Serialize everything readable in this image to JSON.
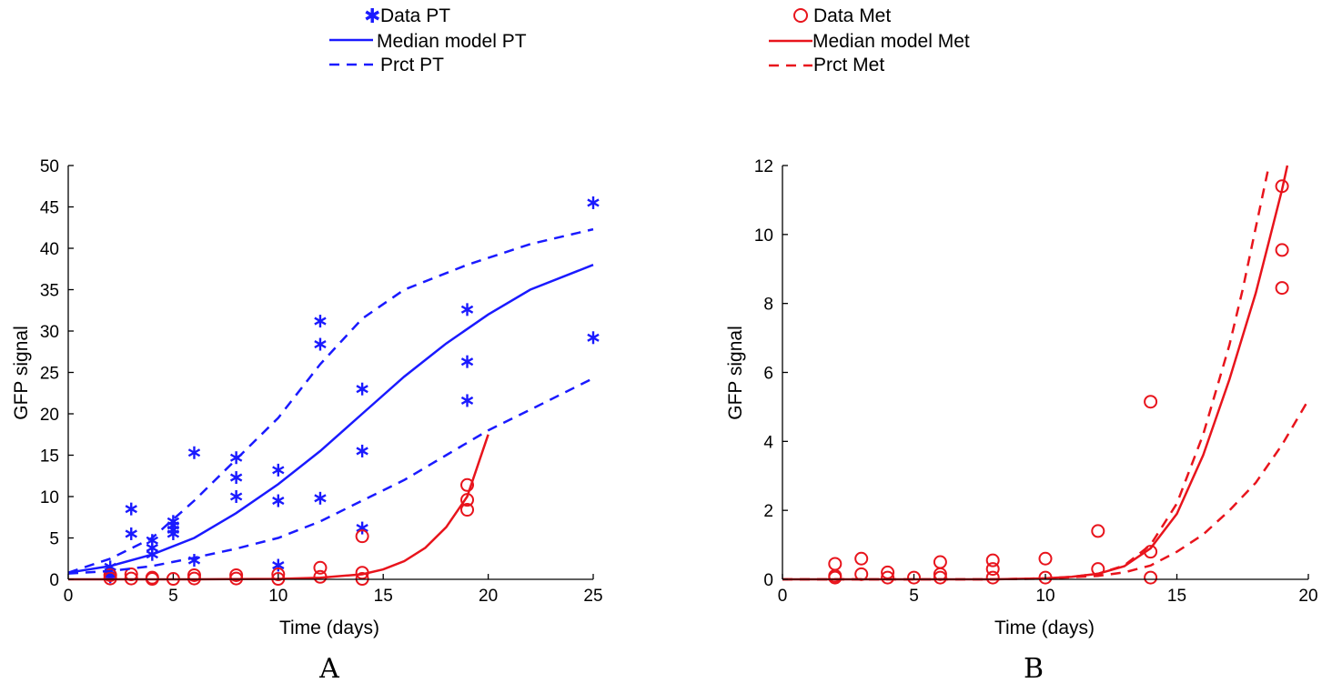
{
  "chart_data": [
    {
      "type": "scatter",
      "panel_label": "A",
      "xlabel": "Time (days)",
      "ylabel": "GFP signal",
      "xlim": [
        0,
        25
      ],
      "ylim": [
        0,
        50
      ],
      "xticks": [
        "0",
        "5",
        "10",
        "15",
        "20",
        "25"
      ],
      "yticks": [
        "0",
        "5",
        "10",
        "15",
        "20",
        "25",
        "30",
        "35",
        "40",
        "45",
        "50"
      ],
      "grid": false,
      "legend": {
        "placement": "top-left",
        "entries": [
          "Data PT",
          "Median model PT",
          "Prct PT"
        ]
      },
      "series": [
        {
          "name": "Data PT",
          "kind": "points",
          "marker": "asterisk",
          "color": "#1a1aff",
          "points": [
            [
              2,
              1.5
            ],
            [
              2,
              0.6
            ],
            [
              2,
              0.3
            ],
            [
              3,
              8.5
            ],
            [
              3,
              5.5
            ],
            [
              4,
              4.7
            ],
            [
              4,
              3.8
            ],
            [
              4,
              3.0
            ],
            [
              5,
              7.0
            ],
            [
              5,
              6.5
            ],
            [
              5,
              6.0
            ],
            [
              5,
              5.5
            ],
            [
              6,
              15.3
            ],
            [
              6,
              2.3
            ],
            [
              8,
              14.7
            ],
            [
              8,
              12.3
            ],
            [
              8,
              10.0
            ],
            [
              10,
              13.2
            ],
            [
              10,
              9.5
            ],
            [
              10,
              1.7
            ],
            [
              12,
              31.2
            ],
            [
              12,
              28.4
            ],
            [
              12,
              9.8
            ],
            [
              14,
              23.0
            ],
            [
              14,
              15.5
            ],
            [
              14,
              6.2
            ],
            [
              19,
              32.6
            ],
            [
              19,
              26.3
            ],
            [
              19,
              21.6
            ],
            [
              25,
              45.5
            ],
            [
              25,
              29.2
            ]
          ]
        },
        {
          "name": "Data Met",
          "kind": "points",
          "marker": "circle",
          "color": "#e8141c",
          "points": [
            [
              2,
              0.5
            ],
            [
              2,
              0.1
            ],
            [
              3,
              0.6
            ],
            [
              3,
              0.1
            ],
            [
              4,
              0.2
            ],
            [
              4,
              0.05
            ],
            [
              5,
              0.05
            ],
            [
              6,
              0.5
            ],
            [
              6,
              0.1
            ],
            [
              8,
              0.5
            ],
            [
              8,
              0.1
            ],
            [
              10,
              0.6
            ],
            [
              10,
              0.05
            ],
            [
              12,
              1.4
            ],
            [
              12,
              0.3
            ],
            [
              14,
              5.2
            ],
            [
              14,
              0.8
            ],
            [
              14,
              0.05
            ],
            [
              19,
              11.4
            ],
            [
              19,
              9.6
            ],
            [
              19,
              8.4
            ]
          ]
        },
        {
          "name": "Median model PT",
          "kind": "line",
          "dash": "solid",
          "color": "#1a1aff",
          "points": [
            [
              0,
              0.8
            ],
            [
              2,
              1.6
            ],
            [
              4,
              3.0
            ],
            [
              6,
              5.0
            ],
            [
              8,
              8.0
            ],
            [
              10,
              11.5
            ],
            [
              12,
              15.5
            ],
            [
              14,
              20.0
            ],
            [
              16,
              24.5
            ],
            [
              18,
              28.5
            ],
            [
              20,
              32.0
            ],
            [
              22,
              35.0
            ],
            [
              25,
              38.0
            ]
          ]
        },
        {
          "name": "Prct PT",
          "kind": "line",
          "dash": "dashed",
          "color": "#1a1aff",
          "points": [
            [
              0,
              0.8
            ],
            [
              2,
              2.5
            ],
            [
              4,
              5.0
            ],
            [
              6,
              9.5
            ],
            [
              8,
              14.5
            ],
            [
              10,
              19.5
            ],
            [
              12,
              26.0
            ],
            [
              14,
              31.5
            ],
            [
              16,
              35.0
            ],
            [
              19,
              38.0
            ],
            [
              22,
              40.5
            ],
            [
              25,
              42.3
            ]
          ]
        },
        {
          "name": "Prct PT",
          "kind": "line",
          "dash": "dashed",
          "color": "#1a1aff",
          "points": [
            [
              0,
              0.7
            ],
            [
              2,
              1.0
            ],
            [
              4,
              1.6
            ],
            [
              6,
              2.6
            ],
            [
              8,
              3.7
            ],
            [
              10,
              5.0
            ],
            [
              12,
              7.0
            ],
            [
              14,
              9.5
            ],
            [
              16,
              12.0
            ],
            [
              18,
              15.0
            ],
            [
              20,
              18.0
            ],
            [
              22,
              20.5
            ],
            [
              25,
              24.3
            ]
          ]
        },
        {
          "name": "Median model Met",
          "kind": "line",
          "dash": "solid",
          "color": "#e8141c",
          "points": [
            [
              0,
              0
            ],
            [
              6,
              0
            ],
            [
              10,
              0.05
            ],
            [
              12,
              0.2
            ],
            [
              14,
              0.6
            ],
            [
              15,
              1.2
            ],
            [
              16,
              2.2
            ],
            [
              17,
              3.8
            ],
            [
              18,
              6.3
            ],
            [
              19,
              10.0
            ],
            [
              20,
              17.5
            ]
          ]
        }
      ]
    },
    {
      "type": "scatter",
      "panel_label": "B",
      "xlabel": "Time (days)",
      "ylabel": "GFP signal",
      "xlim": [
        0,
        20
      ],
      "ylim": [
        0,
        12
      ],
      "xticks": [
        "0",
        "5",
        "10",
        "15",
        "20"
      ],
      "yticks": [
        "0",
        "2",
        "4",
        "6",
        "8",
        "10",
        "12"
      ],
      "grid": false,
      "legend": {
        "placement": "top-left",
        "entries": [
          "Data Met",
          "Median model Met",
          "Prct Met"
        ]
      },
      "series": [
        {
          "name": "Data Met",
          "kind": "points",
          "marker": "circle",
          "color": "#e8141c",
          "points": [
            [
              2,
              0.45
            ],
            [
              2,
              0.1
            ],
            [
              2,
              0.05
            ],
            [
              3,
              0.6
            ],
            [
              3,
              0.15
            ],
            [
              4,
              0.2
            ],
            [
              4,
              0.05
            ],
            [
              5,
              0.05
            ],
            [
              6,
              0.5
            ],
            [
              6,
              0.15
            ],
            [
              6,
              0.05
            ],
            [
              8,
              0.55
            ],
            [
              8,
              0.3
            ],
            [
              8,
              0.05
            ],
            [
              10,
              0.6
            ],
            [
              10,
              0.05
            ],
            [
              12,
              1.4
            ],
            [
              12,
              0.3
            ],
            [
              14,
              5.15
            ],
            [
              14,
              0.8
            ],
            [
              14,
              0.05
            ],
            [
              19,
              11.4
            ],
            [
              19,
              9.55
            ],
            [
              19,
              8.45
            ]
          ]
        },
        {
          "name": "Median model Met",
          "kind": "line",
          "dash": "solid",
          "color": "#e8141c",
          "points": [
            [
              0,
              0
            ],
            [
              8,
              0
            ],
            [
              10,
              0.03
            ],
            [
              11,
              0.07
            ],
            [
              12,
              0.16
            ],
            [
              13,
              0.38
            ],
            [
              14,
              0.9
            ],
            [
              15,
              1.9
            ],
            [
              16,
              3.6
            ],
            [
              17,
              5.8
            ],
            [
              18,
              8.3
            ],
            [
              18.5,
              9.8
            ],
            [
              19,
              11.3
            ],
            [
              19.2,
              12.0
            ]
          ]
        },
        {
          "name": "Prct Met",
          "kind": "line",
          "dash": "dashed",
          "color": "#e8141c",
          "points": [
            [
              0,
              0
            ],
            [
              8,
              0
            ],
            [
              10,
              0.03
            ],
            [
              11,
              0.07
            ],
            [
              12,
              0.16
            ],
            [
              13,
              0.4
            ],
            [
              14,
              1.0
            ],
            [
              15,
              2.2
            ],
            [
              16,
              4.2
            ],
            [
              17,
              6.8
            ],
            [
              17.5,
              8.4
            ],
            [
              18,
              10.2
            ],
            [
              18.5,
              12.0
            ]
          ]
        },
        {
          "name": "Prct Met",
          "kind": "line",
          "dash": "dashed",
          "color": "#e8141c",
          "points": [
            [
              0,
              0
            ],
            [
              8,
              0
            ],
            [
              10,
              0.02
            ],
            [
              12,
              0.1
            ],
            [
              13,
              0.2
            ],
            [
              14,
              0.4
            ],
            [
              15,
              0.8
            ],
            [
              16,
              1.3
            ],
            [
              17,
              2.0
            ],
            [
              18,
              2.8
            ],
            [
              19,
              3.9
            ],
            [
              20,
              5.2
            ]
          ]
        }
      ]
    }
  ]
}
